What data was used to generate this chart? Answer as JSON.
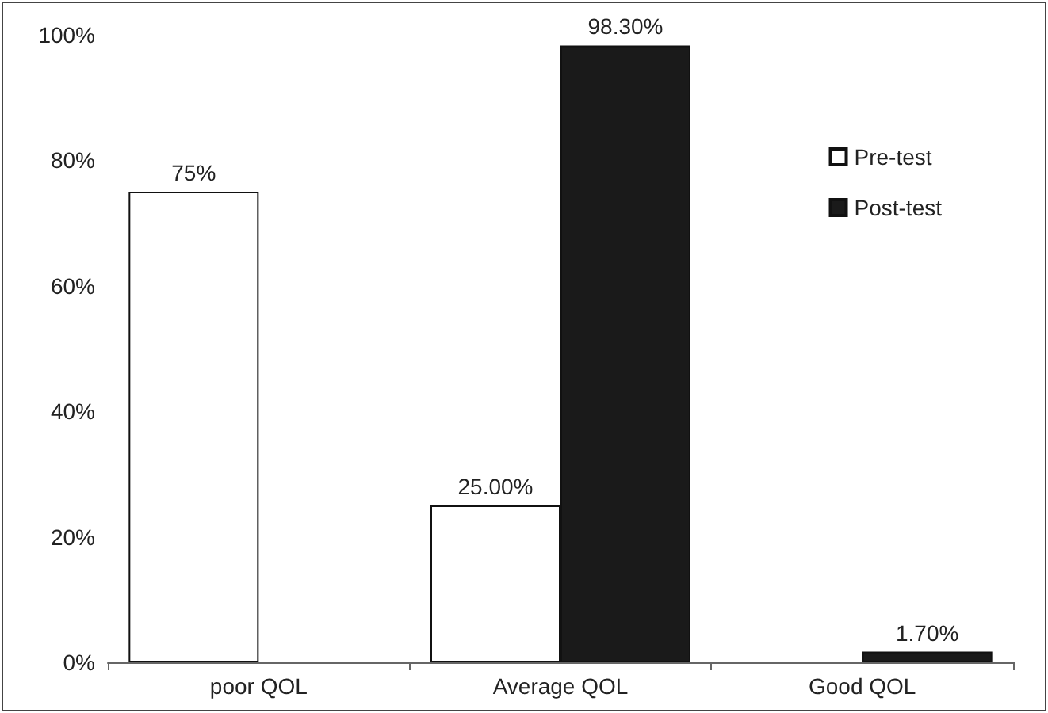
{
  "chart_data": {
    "type": "bar",
    "categories": [
      "poor QOL",
      "Average QOL",
      "Good QOL"
    ],
    "series": [
      {
        "name": "Pre-test",
        "color": "#ffffff",
        "values": [
          75,
          25,
          null
        ],
        "value_labels": [
          "75%",
          "25.00%",
          null
        ]
      },
      {
        "name": "Post-test",
        "color": "#1a1a1a",
        "values": [
          null,
          98.3,
          1.7
        ],
        "value_labels": [
          null,
          "98.30%",
          "1.70%"
        ]
      }
    ],
    "ylim": [
      0,
      100
    ],
    "yticks": [
      {
        "value": 0,
        "label": "0%"
      },
      {
        "value": 20,
        "label": "20%"
      },
      {
        "value": 40,
        "label": "40%"
      },
      {
        "value": 60,
        "label": "60%"
      },
      {
        "value": 80,
        "label": "80%"
      },
      {
        "value": 100,
        "label": "100%"
      }
    ],
    "grid": false,
    "legend": "top right"
  }
}
